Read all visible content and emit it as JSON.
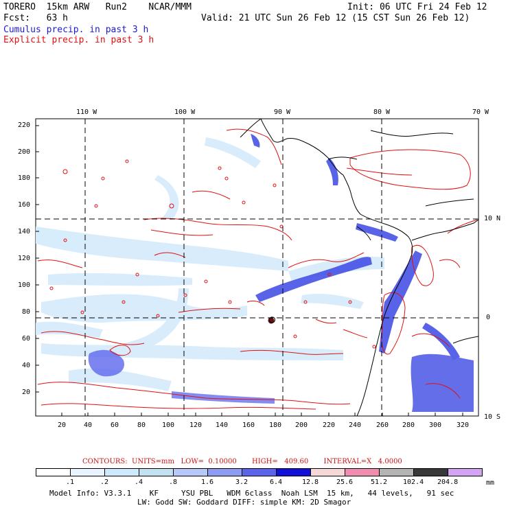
{
  "header": {
    "model": "TORERO  15km ARW   Run2    NCAR/MMM",
    "fcst": "Fcst:   63 h",
    "init": "Init: 06 UTC Fri 24 Feb 12",
    "valid": "Valid: 21 UTC Sun 26 Feb 12 (15 CST Sun 26 Feb 12)",
    "cumulus": "Cumulus precip. in past 3 h",
    "explicit": "Explicit precip. in past 3 h"
  },
  "map": {
    "top_lon_labels": [
      "110 W",
      "100 W",
      "90 W",
      "80 W",
      "70 W"
    ],
    "right_lat_labels": [
      "10 N",
      "0",
      "10 S"
    ],
    "left_y_ticks": [
      "220",
      "200",
      "180",
      "160",
      "140",
      "120",
      "100",
      "80",
      "60",
      "40",
      "20"
    ],
    "bottom_x_ticks": [
      "20",
      "40",
      "60",
      "80",
      "100",
      "120",
      "140",
      "160",
      "180",
      "200",
      "220",
      "240",
      "260",
      "280",
      "300",
      "320"
    ],
    "colors": {
      "contour": "#e01010",
      "coast": "#000000",
      "grid": "#000000"
    }
  },
  "contours_note": {
    "label": "CONTOURS:  UNITS=mm   LOW=  0.10000       HIGH=   409.60       INTERVAL=X   4.0000"
  },
  "colorbar": {
    "labels": [
      ".1",
      ".2",
      ".4",
      ".8",
      "1.6",
      "3.2",
      "6.4",
      "12.8",
      "25.6",
      "51.2",
      "102.4",
      "204.8"
    ],
    "units": "mm",
    "colors": [
      "#ffffff",
      "#e8f4ff",
      "#cdeaff",
      "#c2e2f2",
      "#b8c8f8",
      "#8e9cf4",
      "#5a64ea",
      "#1010d8",
      "#f6d8d8",
      "#f08cb0",
      "#b4b4b4",
      "#383838",
      "#d4a4f4"
    ]
  },
  "footer": {
    "line1": "Model Info: V3.3.1    KF     YSU PBL   WDM 6class  Noah LSM  15 km,   44 levels,   91 sec",
    "line2": "LW: Godd SW: Goddard DIFF: simple KM: 2D Smagor"
  }
}
